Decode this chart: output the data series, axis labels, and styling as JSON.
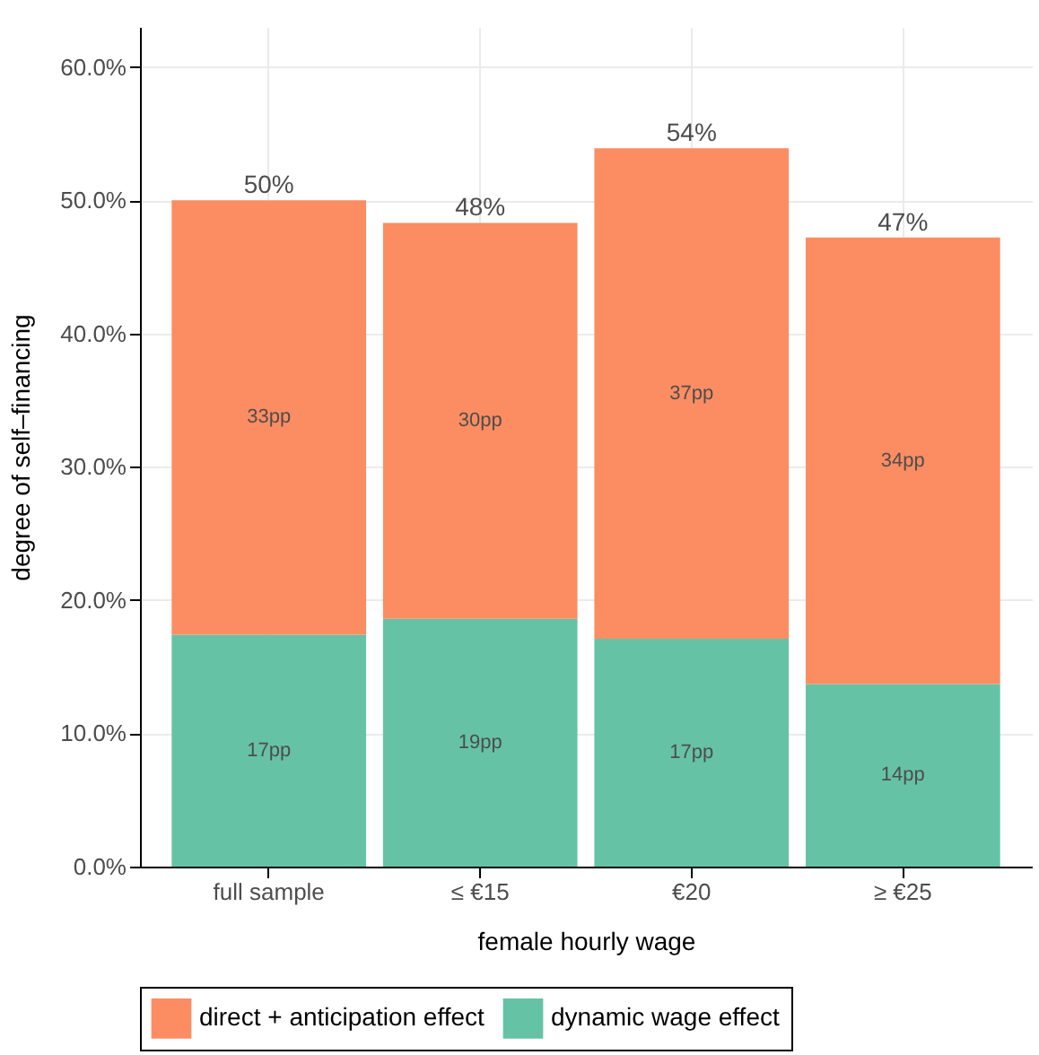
{
  "chart_data": {
    "type": "bar",
    "stacked": true,
    "xlabel": "female hourly wage",
    "ylabel": "degree of self–financing",
    "categories": [
      "full sample",
      "≤ €15",
      "€20",
      "≥ €25"
    ],
    "series": [
      {
        "name": "dynamic wage effect",
        "color": "#66c2a5",
        "values": [
          17.4,
          18.6,
          17.1,
          13.7
        ],
        "value_labels": [
          "17pp",
          "19pp",
          "17pp",
          "14pp"
        ]
      },
      {
        "name": "direct + anticipation effect",
        "color": "#fc8d62",
        "values": [
          32.6,
          29.7,
          36.8,
          33.5
        ],
        "value_labels": [
          "33pp",
          "30pp",
          "37pp",
          "34pp"
        ]
      }
    ],
    "totals": [
      "50%",
      "48%",
      "54%",
      "47%"
    ],
    "ylim": [
      0,
      63
    ],
    "yticks": [
      {
        "value": 0,
        "label": "0.0%"
      },
      {
        "value": 10,
        "label": "10.0%"
      },
      {
        "value": 20,
        "label": "20.0%"
      },
      {
        "value": 30,
        "label": "30.0%"
      },
      {
        "value": 40,
        "label": "40.0%"
      },
      {
        "value": 50,
        "label": "50.0%"
      },
      {
        "value": 60,
        "label": "60.0%"
      }
    ],
    "grid": true,
    "legend": "bottom"
  }
}
